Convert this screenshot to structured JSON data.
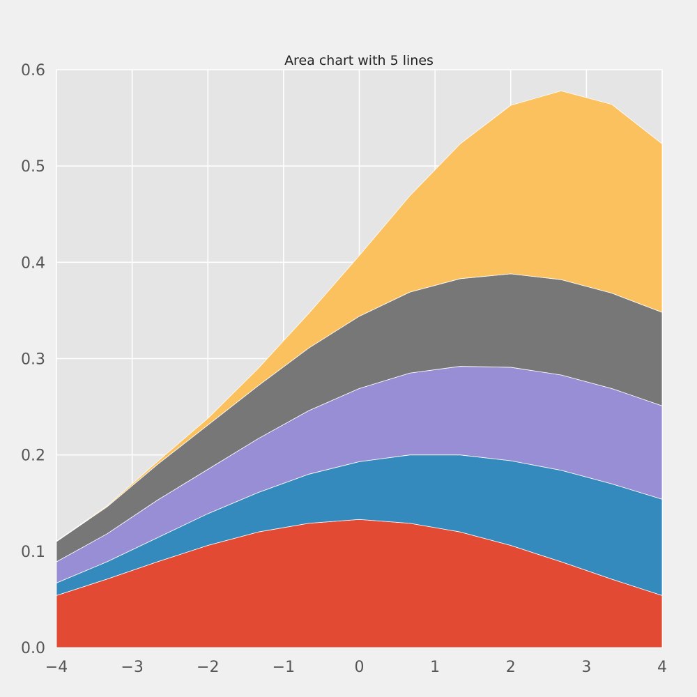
{
  "chart_data": {
    "type": "area",
    "stacked": true,
    "title": "Area chart with 5 lines",
    "xlabel": "",
    "ylabel": "",
    "xlim": [
      -4,
      4
    ],
    "ylim": [
      0,
      0.6
    ],
    "grid": true,
    "x_ticks": [
      -4,
      -3,
      -2,
      -1,
      0,
      1,
      2,
      3,
      4
    ],
    "x_tick_labels": [
      "−4",
      "−3",
      "−2",
      "−1",
      "0",
      "1",
      "2",
      "3",
      "4"
    ],
    "y_ticks": [
      0,
      0.1,
      0.2,
      0.3,
      0.4,
      0.5,
      0.6
    ],
    "y_tick_labels": [
      "0.0",
      "0.1",
      "0.2",
      "0.3",
      "0.4",
      "0.5",
      "0.6"
    ],
    "x": [
      -4,
      -3.333,
      -2.667,
      -2,
      -1.333,
      -0.667,
      0,
      0.667,
      1.333,
      2,
      2.667,
      3.333,
      4
    ],
    "series": [
      {
        "color": "#e24a33",
        "values": [
          0.054,
          0.071,
          0.089,
          0.106,
          0.12,
          0.129,
          0.133,
          0.129,
          0.12,
          0.106,
          0.089,
          0.071,
          0.054
        ]
      },
      {
        "color": "#348abd",
        "values": [
          0.013,
          0.018,
          0.025,
          0.033,
          0.041,
          0.051,
          0.06,
          0.071,
          0.08,
          0.088,
          0.095,
          0.099,
          0.1
        ]
      },
      {
        "color": "#988ed5",
        "values": [
          0.022,
          0.029,
          0.039,
          0.046,
          0.056,
          0.066,
          0.076,
          0.085,
          0.092,
          0.097,
          0.099,
          0.099,
          0.097
        ]
      },
      {
        "color": "#777777",
        "values": [
          0.021,
          0.028,
          0.037,
          0.046,
          0.055,
          0.065,
          0.075,
          0.084,
          0.091,
          0.097,
          0.099,
          0.099,
          0.097
        ]
      },
      {
        "color": "#fbc15e",
        "values": [
          0.0005,
          0.001,
          0.003,
          0.007,
          0.018,
          0.036,
          0.063,
          0.1,
          0.14,
          0.175,
          0.196,
          0.196,
          0.175
        ]
      }
    ]
  }
}
